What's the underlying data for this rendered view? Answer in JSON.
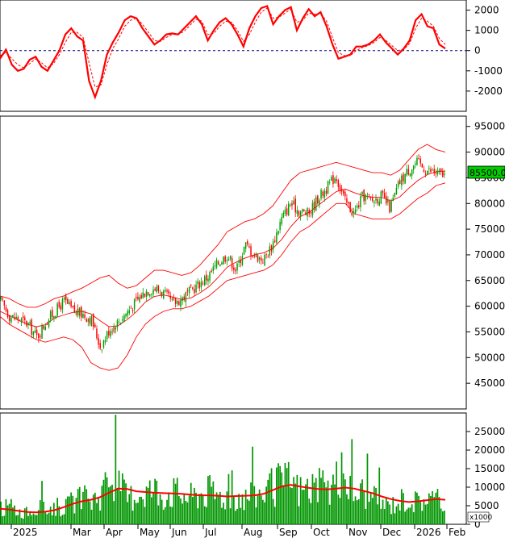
{
  "chart_data": [
    {
      "panel": "macd",
      "type": "line",
      "y_ticks": [
        2000,
        1000,
        0,
        -1000,
        -2000
      ],
      "ylim": [
        -3000,
        2500
      ],
      "colors": {
        "macd": "#ff0000",
        "signal": "#ff0000",
        "zero": "#000080"
      },
      "series": [
        {
          "key": "macd",
          "values": [
            -400,
            50,
            -700,
            -1000,
            -900,
            -450,
            -300,
            -800,
            -1000,
            -500,
            0,
            800,
            1100,
            700,
            500,
            -1500,
            -2300,
            -1500,
            -200,
            400,
            900,
            1500,
            1700,
            1600,
            1100,
            700,
            300,
            500,
            800,
            850,
            800,
            1100,
            1400,
            1700,
            1300,
            500,
            1000,
            1400,
            1600,
            1300,
            800,
            200,
            1100,
            1700,
            2100,
            2200,
            1300,
            1700,
            2000,
            2150,
            1000,
            1600,
            2050,
            1700,
            1900,
            1200,
            300,
            -400,
            -300,
            -200,
            200,
            200,
            300,
            500,
            800,
            400,
            100,
            -200,
            100,
            500,
            1500,
            1800,
            1200,
            1100,
            300,
            100
          ]
        },
        {
          "key": "signal",
          "values": [
            -250,
            -100,
            -400,
            -700,
            -850,
            -650,
            -400,
            -600,
            -850,
            -650,
            -200,
            400,
            900,
            900,
            650,
            -600,
            -1800,
            -1700,
            -700,
            100,
            600,
            1200,
            1500,
            1600,
            1300,
            900,
            500,
            450,
            650,
            800,
            800,
            950,
            1250,
            1550,
            1450,
            800,
            850,
            1200,
            1450,
            1400,
            1000,
            450,
            800,
            1400,
            1900,
            2100,
            1600,
            1650,
            1850,
            2050,
            1400,
            1500,
            1850,
            1800,
            1850,
            1450,
            650,
            -100,
            -250,
            -250,
            0,
            150,
            250,
            400,
            650,
            500,
            250,
            0,
            50,
            350,
            1100,
            1600,
            1450,
            1200,
            600,
            300
          ]
        }
      ]
    },
    {
      "panel": "price",
      "type": "candlestick",
      "y_ticks": [
        95000,
        90000,
        85000,
        80000,
        75000,
        70000,
        65000,
        60000,
        55000,
        50000,
        45000
      ],
      "ylim": [
        40000,
        97000
      ],
      "last_price_label": "85500.00",
      "colors": {
        "up": "#00a000",
        "down": "#ff0000",
        "bands": "#ff0000"
      },
      "close_anchors": [
        61000,
        58000,
        57500,
        56500,
        54000,
        57000,
        59000,
        61000,
        59000,
        58500,
        57500,
        52000,
        55500,
        57000,
        59000,
        61000,
        63000,
        63500,
        62500,
        60500,
        61500,
        63000,
        64500,
        66000,
        68500,
        70000,
        67000,
        72000,
        70000,
        69000,
        72000,
        77000,
        80000,
        78500,
        78000,
        81000,
        83000,
        85500,
        80500,
        78000,
        81500,
        80500,
        81500,
        79000,
        84000,
        86500,
        88000,
        86500,
        86000,
        85500
      ],
      "bollinger_middle": [
        59000,
        58200,
        57300,
        56500,
        56000,
        56400,
        57700,
        58300,
        58800,
        59000,
        58500,
        57200,
        56000,
        56200,
        57400,
        58900,
        60800,
        61900,
        62200,
        61800,
        61300,
        61600,
        62600,
        63800,
        65600,
        67600,
        68600,
        69400,
        70000,
        70400,
        71200,
        73000,
        75500,
        77400,
        78300,
        79600,
        81000,
        82300,
        82800,
        82100,
        81500,
        81200,
        81200,
        80500,
        81300,
        83000,
        84500,
        85600,
        86200,
        86300
      ],
      "bollinger_upper": [
        62000,
        61500,
        60500,
        59800,
        59800,
        60500,
        61500,
        62000,
        62800,
        63500,
        64500,
        65500,
        66000,
        64500,
        63500,
        64000,
        65500,
        67000,
        67000,
        66500,
        66000,
        66500,
        68000,
        70000,
        72000,
        74500,
        75500,
        76500,
        77000,
        78000,
        79500,
        82000,
        84500,
        86000,
        86500,
        87000,
        87500,
        88000,
        87500,
        87000,
        86500,
        86000,
        86000,
        85500,
        86500,
        88500,
        90500,
        91500,
        90500,
        90000
      ],
      "bollinger_lower": [
        58000,
        56500,
        55500,
        54500,
        53500,
        53000,
        53500,
        54000,
        53500,
        52000,
        49000,
        48000,
        47500,
        48000,
        50500,
        54000,
        56500,
        58000,
        59000,
        59500,
        59500,
        60000,
        61000,
        62000,
        63500,
        65000,
        65500,
        66000,
        66500,
        67000,
        68000,
        70000,
        72500,
        74500,
        75500,
        77000,
        78500,
        80000,
        80000,
        78000,
        77500,
        77000,
        77000,
        77000,
        78000,
        79500,
        81000,
        82000,
        83500,
        84000
      ]
    },
    {
      "panel": "volume",
      "type": "bar",
      "y_ticks": [
        25000,
        20000,
        15000,
        10000,
        5000,
        0
      ],
      "ylim": [
        0,
        30000
      ],
      "unit_label": "x1000",
      "colors": {
        "bars": "#009600",
        "average": "#ff0000"
      },
      "volume_anchors": [
        4000,
        5000,
        3500,
        3000,
        4500,
        4000,
        5000,
        4500,
        6000,
        7000,
        6500,
        8000,
        13000,
        11000,
        7000,
        8500,
        9000,
        9500,
        8000,
        9000,
        8000,
        7500,
        8500,
        9000,
        8000,
        7500,
        8000,
        7000,
        8000,
        9000,
        10000,
        11000,
        12000,
        9000,
        10000,
        10000,
        9000,
        12000,
        13000,
        8000,
        9000,
        7000,
        6000,
        5000,
        6500,
        7000,
        6000,
        7500,
        6500,
        6000
      ],
      "average_anchors": [
        4200,
        4000,
        3600,
        3300,
        3200,
        3400,
        3800,
        4600,
        5500,
        6200,
        6600,
        7300,
        8500,
        9600,
        9500,
        8900,
        8700,
        8500,
        8400,
        8300,
        8200,
        8000,
        7800,
        7800,
        7700,
        7500,
        7600,
        7700,
        7800,
        8200,
        9200,
        10200,
        10600,
        10200,
        9800,
        9500,
        9400,
        9600,
        9900,
        9600,
        9000,
        8400,
        7500,
        6800,
        6300,
        6000,
        6200,
        6500,
        6800,
        6600
      ]
    }
  ],
  "x_axis": {
    "month_labels": [
      "2025",
      "Mar",
      "Apr",
      "May",
      "Jun",
      "Jul",
      "Aug",
      "Sep",
      "Oct",
      "Nov",
      "Dec",
      "2026",
      "Feb"
    ]
  }
}
